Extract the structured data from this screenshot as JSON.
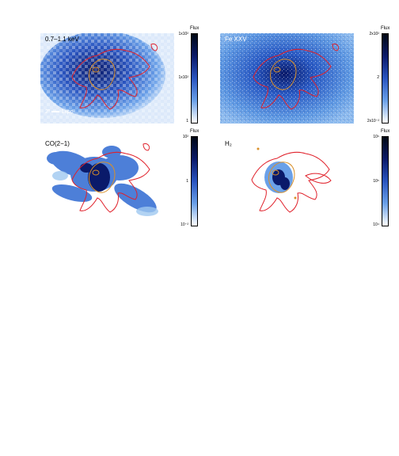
{
  "panels": [
    {
      "label": "0.7–1.1 keV",
      "colorbar": {
        "title": "Flux",
        "ticks": [
          "1x10²",
          "1x10²",
          "1"
        ]
      }
    },
    {
      "label": "Fe XXV",
      "colorbar": {
        "title": "Flux",
        "ticks": [
          "2x10²",
          "2",
          "2x10⁻²"
        ]
      }
    },
    {
      "label": "CO(2−1)",
      "colorbar": {
        "title": "Flux",
        "ticks": [
          "10²",
          "1",
          "10⁻²"
        ]
      }
    },
    {
      "label": "H₂",
      "colorbar": {
        "title": "Flux",
        "ticks": [
          "10⁶",
          "10⁵",
          "10⁴"
        ]
      }
    }
  ],
  "scale_bar": {
    "arcsec": "2″",
    "kpc": "1kpc"
  },
  "colors": {
    "contour_red": "#e0202a",
    "contour_orange": "#d9902a",
    "map_dark": "#0a1a6a",
    "map_light": "#9fc8f0"
  }
}
